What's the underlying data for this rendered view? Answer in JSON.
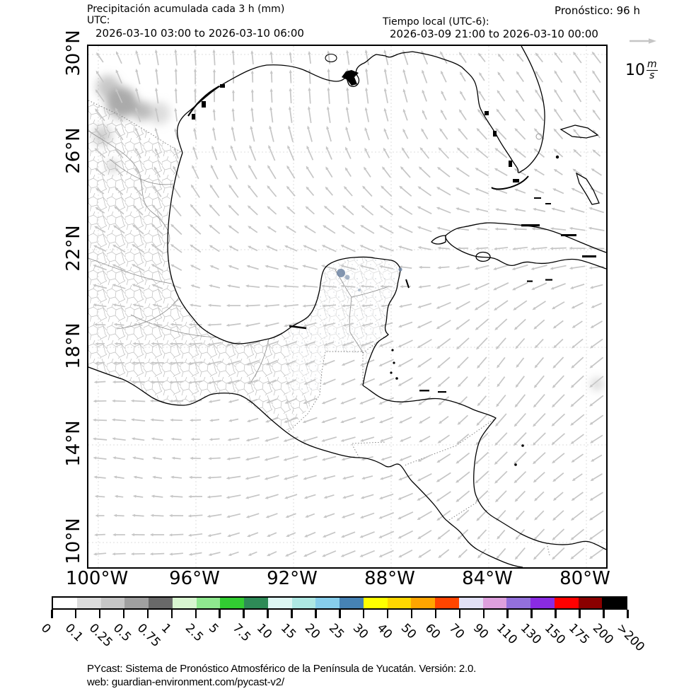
{
  "header": {
    "title": "Precipitación acumulada cada 3 h (mm)",
    "utc_label": "UTC:",
    "utc_range": "2026-03-10 03:00 to 2026-03-10 06:00",
    "forecast": "Pronóstico: 96 h",
    "local_label": "Tiempo local (UTC-6):",
    "local_range": "2026-03-09 21:00 to 2026-03-10 00:00"
  },
  "wind_legend": {
    "value": "10",
    "unit_num": "m",
    "unit_den": "s"
  },
  "map": {
    "x_ticks": [
      "100°W",
      "96°W",
      "92°W",
      "88°W",
      "84°W",
      "80°W"
    ],
    "y_ticks": [
      "30°N",
      "26°N",
      "22°N",
      "18°N",
      "14°N",
      "10°N"
    ]
  },
  "colorbar": {
    "labels": [
      "0",
      "0.1",
      "0.25",
      "0.5",
      "0.75",
      "1",
      "2.5",
      "5",
      "7.5",
      "10",
      "15",
      "20",
      "25",
      "30",
      "40",
      "50",
      "60",
      "70",
      "90",
      "110",
      "130",
      "150",
      "175",
      "200",
      ">200"
    ],
    "colors": [
      "#ffffff",
      "#dcdcdc",
      "#c6c6c6",
      "#a0a0a0",
      "#696969",
      "#d8f5d0",
      "#8fe88f",
      "#32cd32",
      "#2e8b57",
      "#ddf7f3",
      "#aee8e3",
      "#87ceeb",
      "#4682b4",
      "#ffff00",
      "#ffd700",
      "#ffa500",
      "#ff4500",
      "#e2e0f5",
      "#dda0dd",
      "#9370db",
      "#8a2be2",
      "#ff0000",
      "#8b0000",
      "#000000"
    ]
  },
  "footer": {
    "line1": "PYcast: Sistema de Pronóstico Atmosférico de la Península de Yucatán. Versión: 2.0.",
    "line2": "web: guardian-environment.com/pycast-v2/"
  }
}
